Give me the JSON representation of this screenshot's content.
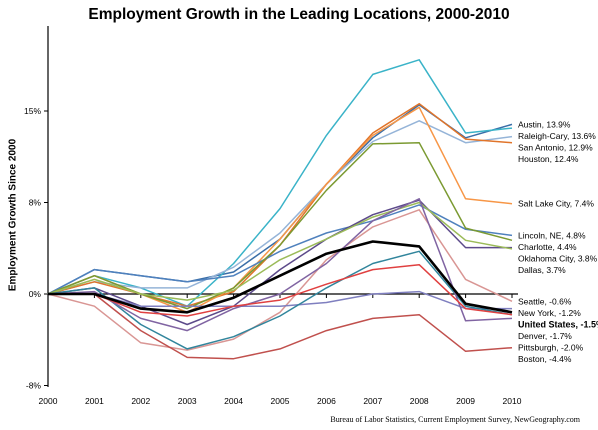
{
  "chart_data": {
    "type": "line",
    "title": "Employment Growth in the Leading Locations, 2000-2010",
    "ylabel": "Employment Growth Since 2000",
    "xlabel": "",
    "source": "Bureau of Labor Statistics, Current Employment Survey, NewGeography.com",
    "categories": [
      "2000",
      "2001",
      "2002",
      "2003",
      "2004",
      "2005",
      "2006",
      "2007",
      "2008",
      "2009",
      "2010"
    ],
    "ylim": [
      -8,
      20
    ],
    "yticks": [
      {
        "value": 15,
        "label": "15%"
      },
      {
        "value": 7.5,
        "label": "8%"
      },
      {
        "value": 0,
        "label": "0%"
      },
      {
        "value": -7.5,
        "label": "-8%"
      }
    ],
    "grid": false,
    "legend": "direct labels at right",
    "series": [
      {
        "name": "Austin",
        "label": "Austin, 13.9%",
        "color": "#3a6ea8",
        "values": [
          0,
          2.0,
          1.5,
          1.0,
          1.8,
          4.5,
          9.0,
          12.8,
          15.5,
          12.8,
          13.9
        ]
      },
      {
        "name": "Raleigh-Cary",
        "label": "Raleigh-Cary, 13.6%",
        "color": "#3ab3c8",
        "values": [
          0,
          1.5,
          0.5,
          -1.0,
          2.5,
          7.0,
          13.0,
          18.0,
          19.2,
          13.2,
          13.6
        ]
      },
      {
        "name": "San Antonio",
        "label": "San Antonio, 12.9%",
        "color": "#95b4d8",
        "values": [
          0,
          1.0,
          0.5,
          0.5,
          2.2,
          5.0,
          9.0,
          12.5,
          14.2,
          12.4,
          12.9
        ]
      },
      {
        "name": "Houston",
        "label": "Houston, 12.4%",
        "color": "#e0742a",
        "values": [
          0,
          1.0,
          0.0,
          -1.0,
          0.2,
          4.0,
          9.0,
          13.2,
          15.6,
          12.7,
          12.4
        ]
      },
      {
        "name": "Salt Lake City",
        "label": "Salt Lake City, 7.4%",
        "color": "#f79646",
        "values": [
          0,
          1.5,
          0.0,
          -1.5,
          0.5,
          4.5,
          9.0,
          13.0,
          15.3,
          7.8,
          7.4
        ]
      },
      {
        "name": "Lincoln, NE",
        "label": "Lincoln, NE, 4.8%",
        "color": "#4f81bd",
        "values": [
          0,
          2.0,
          1.5,
          1.0,
          1.5,
          3.5,
          5.0,
          6.0,
          7.3,
          5.3,
          4.8
        ]
      },
      {
        "name": "Charlotte",
        "label": "Charlotte, 4.4%",
        "color": "#7b9a32",
        "values": [
          0,
          1.5,
          0.0,
          -1.2,
          0.5,
          4.0,
          8.5,
          12.3,
          12.4,
          5.4,
          4.4
        ]
      },
      {
        "name": "Oklahoma City",
        "label": "Oklahoma City, 3.8%",
        "color": "#5c4a8a",
        "values": [
          0,
          0.5,
          -1.0,
          -2.5,
          -1.0,
          2.0,
          4.5,
          6.5,
          7.7,
          3.8,
          3.8
        ]
      },
      {
        "name": "Dallas",
        "label": "Dallas, 3.7%",
        "color": "#9bbb59",
        "values": [
          0,
          1.2,
          0.0,
          -0.5,
          0.3,
          2.8,
          4.5,
          6.3,
          7.5,
          4.4,
          3.7
        ]
      },
      {
        "name": "Seattle",
        "label": "Seattle, -0.6%",
        "color": "#d99694",
        "values": [
          0,
          -1.0,
          -4.0,
          -4.6,
          -3.7,
          -1.5,
          2.8,
          5.5,
          6.9,
          1.2,
          -0.6
        ]
      },
      {
        "name": "New York",
        "label": "New York, -1.2%",
        "color": "#7f7fbf",
        "values": [
          0,
          0.0,
          -1.0,
          -1.0,
          -1.0,
          -1.0,
          -0.7,
          0.0,
          0.2,
          -1.2,
          -1.2
        ]
      },
      {
        "name": "United States",
        "label": "United States, -1.5%",
        "color": "#000000",
        "bold": true,
        "values": [
          0,
          0.0,
          -1.2,
          -1.5,
          -0.3,
          1.5,
          3.3,
          4.3,
          3.9,
          -0.8,
          -1.5
        ]
      },
      {
        "name": "Denver",
        "label": "Denver, -1.7%",
        "color": "#31859c",
        "values": [
          0,
          0.5,
          -2.5,
          -4.5,
          -3.5,
          -1.8,
          0.5,
          2.5,
          3.5,
          -1.0,
          -1.7
        ]
      },
      {
        "name": "Pittsburgh",
        "label": "Pittsburgh, -2.0%",
        "color": "#8064a2",
        "values": [
          0,
          0.2,
          -2.0,
          -3.0,
          -1.2,
          0.0,
          2.5,
          6.0,
          7.8,
          -2.2,
          -2.0
        ]
      },
      {
        "name": "Boston",
        "label": "Boston, -4.4%",
        "color": "#c0504d",
        "values": [
          0,
          0.0,
          -3.0,
          -5.2,
          -5.3,
          -4.5,
          -3.0,
          -2.0,
          -1.7,
          -4.7,
          -4.4
        ]
      },
      {
        "name": "Red 2",
        "label": "",
        "color": "#e04040",
        "values": [
          0,
          0.0,
          -1.5,
          -1.8,
          -1.0,
          -0.5,
          0.8,
          2.0,
          2.4,
          -1.2,
          -1.7
        ]
      }
    ]
  }
}
